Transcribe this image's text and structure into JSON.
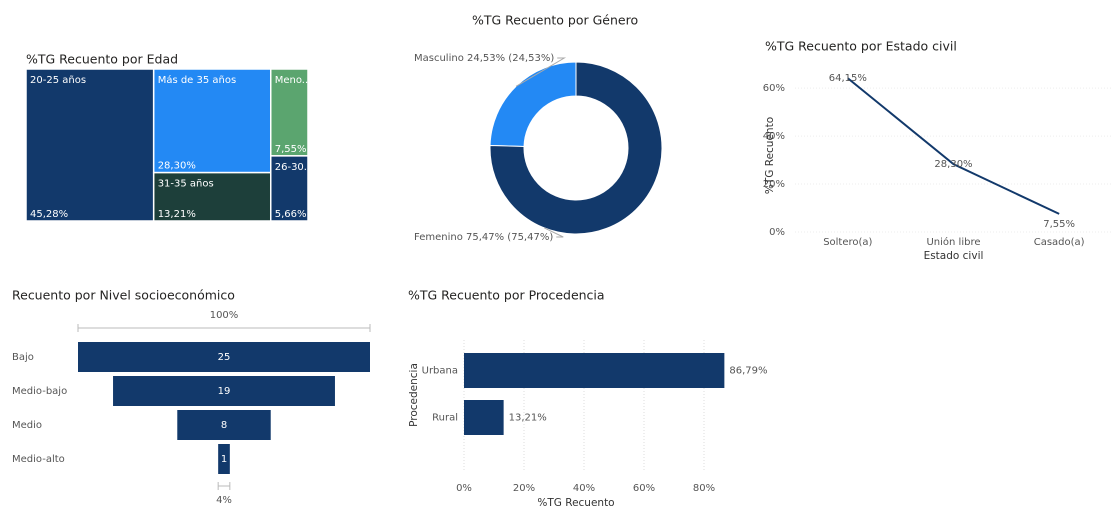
{
  "chart_data": [
    {
      "type": "treemap",
      "title": "%TG Recuento por Edad",
      "categories": [
        "20-25 años",
        "Más de 35 años",
        "31-35 años",
        "Meno...",
        "26-30..."
      ],
      "values": [
        45.28,
        28.3,
        13.21,
        7.55,
        5.66
      ],
      "value_labels": [
        "45,28%",
        "28,30%",
        "13,21%",
        "7,55%",
        "5,66%"
      ],
      "colors": [
        "#12396b",
        "#2389f4",
        "#1d3f3a",
        "#5ba56f",
        "#12396b"
      ]
    },
    {
      "type": "donut",
      "title": "%TG Recuento por Género",
      "categories": [
        "Masculino",
        "Femenino"
      ],
      "values": [
        24.53,
        75.47
      ],
      "value_labels": [
        "Masculino 24,53% (24,53%)",
        "Femenino 75,47% (75,47%)"
      ],
      "colors": [
        "#2389f4",
        "#12396b"
      ]
    },
    {
      "type": "line",
      "title": "%TG Recuento por Estado civil",
      "categories": [
        "Soltero(a)",
        "Unión libre",
        "Casado(a)"
      ],
      "values": [
        64.15,
        28.3,
        7.55
      ],
      "value_labels": [
        "64,15%",
        "28,30%",
        "7,55%"
      ],
      "color": "#12396b",
      "ylim": [
        0,
        68
      ],
      "yticks": [
        {
          "value": 0,
          "label": "0%"
        },
        {
          "value": 20,
          "label": "20%"
        },
        {
          "value": 40,
          "label": "40%"
        },
        {
          "value": 60,
          "label": "60%"
        }
      ],
      "y_label": "%TG Recuento",
      "x_label": "Estado civil",
      "grid": true
    },
    {
      "type": "funnel",
      "title": "Recuento por Nivel socioeconómico",
      "categories": [
        "Bajo",
        "Medio-bajo",
        "Medio",
        "Medio-alto"
      ],
      "values": [
        25,
        19,
        8,
        1
      ],
      "color": "#12396b",
      "annotations": [
        "100%",
        "4%"
      ]
    },
    {
      "type": "hbar",
      "title": "%TG Recuento por Procedencia",
      "categories": [
        "Urbana",
        "Rural"
      ],
      "values": [
        86.79,
        13.21
      ],
      "value_labels": [
        "86,79%",
        "13,21%"
      ],
      "color": "#12396b",
      "xlim": [
        0,
        100
      ],
      "xticks": [
        {
          "value": 0,
          "label": "0%"
        },
        {
          "value": 20,
          "label": "20%"
        },
        {
          "value": 40,
          "label": "40%"
        },
        {
          "value": 60,
          "label": "60%"
        },
        {
          "value": 80,
          "label": "80%"
        }
      ],
      "x_label": "%TG Recuento",
      "y_label": "Procedencia",
      "grid": true
    }
  ]
}
